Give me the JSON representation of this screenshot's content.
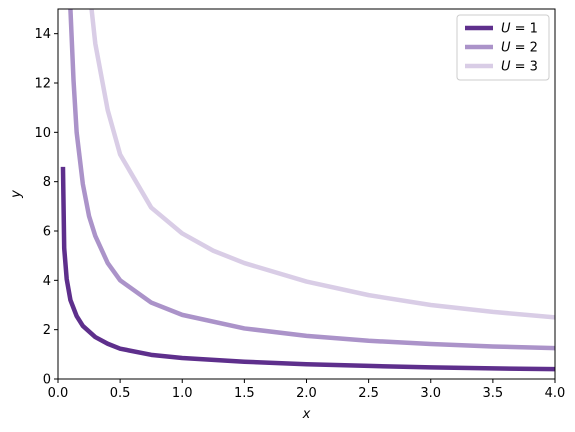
{
  "chart_data": {
    "type": "line",
    "title": "",
    "xlabel": "x",
    "ylabel": "y",
    "xlim": [
      0,
      4
    ],
    "ylim": [
      0,
      15
    ],
    "xticks": [
      0,
      0.5,
      1,
      1.5,
      2,
      2.5,
      3,
      3.5,
      4
    ],
    "xtick_labels": [
      "0.0",
      "0.5",
      "1.0",
      "1.5",
      "2.0",
      "2.5",
      "3.0",
      "3.5",
      "4.0"
    ],
    "yticks": [
      0,
      2,
      4,
      6,
      8,
      10,
      12,
      14
    ],
    "ytick_labels": [
      "0",
      "2",
      "4",
      "6",
      "8",
      "10",
      "12",
      "14"
    ],
    "grid": false,
    "legend_position": "top-right",
    "series": [
      {
        "name": "U = 1",
        "color": "#5e2f8c",
        "x": [
          0.04,
          0.05,
          0.07,
          0.1,
          0.15,
          0.2,
          0.3,
          0.4,
          0.5,
          0.75,
          1.0,
          1.5,
          2.0,
          2.5,
          3.0,
          3.5,
          4.0
        ],
        "y": [
          8.6,
          5.3,
          4.05,
          3.2,
          2.55,
          2.15,
          1.7,
          1.43,
          1.23,
          0.98,
          0.85,
          0.7,
          0.6,
          0.53,
          0.47,
          0.43,
          0.4
        ]
      },
      {
        "name": "U = 2",
        "color": "#ab93c9",
        "x": [
          0.1,
          0.125,
          0.15,
          0.2,
          0.25,
          0.3,
          0.4,
          0.5,
          0.75,
          1.0,
          1.5,
          2.0,
          2.5,
          3.0,
          3.5,
          4.0
        ],
        "y": [
          15,
          12.1,
          10.0,
          7.9,
          6.6,
          5.8,
          4.7,
          4.0,
          3.1,
          2.6,
          2.05,
          1.75,
          1.55,
          1.42,
          1.32,
          1.25
        ]
      },
      {
        "name": "U = 3",
        "color": "#d9cde6",
        "x": [
          0.27,
          0.3,
          0.4,
          0.5,
          0.75,
          1.0,
          1.25,
          1.5,
          2.0,
          2.5,
          3.0,
          3.5,
          4.0
        ],
        "y": [
          15,
          13.6,
          10.9,
          9.1,
          6.95,
          5.9,
          5.2,
          4.7,
          3.95,
          3.4,
          3.0,
          2.72,
          2.5
        ]
      }
    ]
  }
}
